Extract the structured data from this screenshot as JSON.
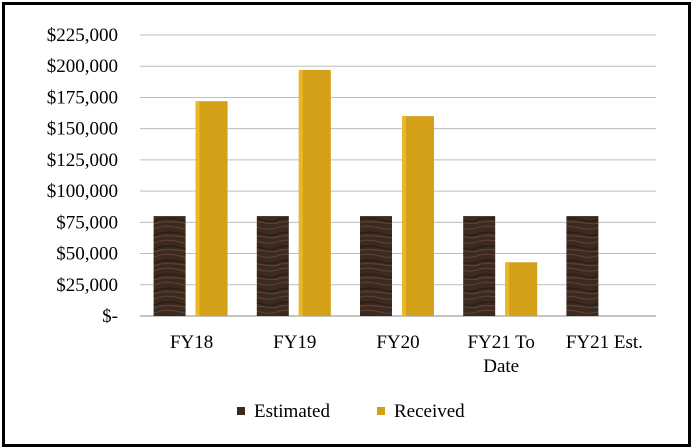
{
  "chart_data": {
    "type": "bar",
    "categories": [
      [
        "FY18"
      ],
      [
        "FY19"
      ],
      [
        "FY20"
      ],
      [
        "FY21 To",
        "Date"
      ],
      [
        "FY21 Est."
      ]
    ],
    "series": [
      {
        "name": "Estimated",
        "color": "#3b2a20",
        "values": [
          80000,
          80000,
          80000,
          80000,
          80000
        ]
      },
      {
        "name": "Received",
        "color": "#d4a017",
        "values": [
          172000,
          197000,
          160000,
          43000,
          null
        ]
      }
    ],
    "ylim": [
      0,
      225000
    ],
    "ytick_values": [
      225000,
      200000,
      175000,
      150000,
      125000,
      100000,
      75000,
      50000,
      25000,
      0
    ],
    "ytick_labels": [
      "$225,000",
      "$200,000",
      "$175,000",
      "$150,000",
      "$125,000",
      "$100,000",
      "$75,000",
      "$50,000",
      "$25,000",
      "$-"
    ],
    "grid": true,
    "legend_position": "bottom-center",
    "title": "",
    "xlabel": "",
    "ylabel": ""
  }
}
